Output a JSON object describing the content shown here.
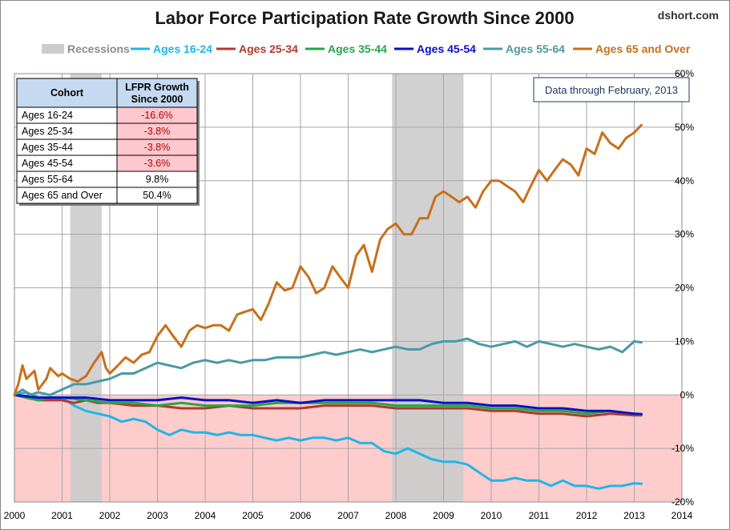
{
  "chart_data": {
    "type": "line",
    "title": "Labor Force Participation Rate Growth Since 2000",
    "credit": "dshort.com",
    "note": "Data through February, 2013",
    "x_ticks": [
      "2000",
      "2001",
      "2002",
      "2003",
      "2004",
      "2005",
      "2006",
      "2007",
      "2008",
      "2009",
      "2010",
      "2011",
      "2012",
      "2013",
      "2014"
    ],
    "xlim": [
      2000,
      2014
    ],
    "y_ticks": [
      "60%",
      "50%",
      "40%",
      "30%",
      "20%",
      "10%",
      "0%",
      "-10%",
      "-20%"
    ],
    "ylim": [
      -20,
      60
    ],
    "grid": true,
    "negative_zone_color": "#ffcccc",
    "recessions": {
      "label": "Recessions",
      "color": "#cccccc",
      "periods": [
        [
          2001.17,
          2001.83
        ],
        [
          2007.92,
          2009.42
        ]
      ]
    },
    "series": [
      {
        "name": "Ages 16-24",
        "color": "#1fb6e8",
        "final": "-16.6%",
        "points": [
          [
            2000,
            0
          ],
          [
            2000.25,
            0.5
          ],
          [
            2000.5,
            -0.5
          ],
          [
            2000.75,
            -1
          ],
          [
            2001,
            -0.5
          ],
          [
            2001.25,
            -2
          ],
          [
            2001.5,
            -3
          ],
          [
            2001.75,
            -3.5
          ],
          [
            2002,
            -4
          ],
          [
            2002.25,
            -5
          ],
          [
            2002.5,
            -4.5
          ],
          [
            2002.75,
            -5
          ],
          [
            2003,
            -6.5
          ],
          [
            2003.25,
            -7.5
          ],
          [
            2003.5,
            -6.5
          ],
          [
            2003.75,
            -7
          ],
          [
            2004,
            -7
          ],
          [
            2004.25,
            -7.5
          ],
          [
            2004.5,
            -7
          ],
          [
            2004.75,
            -7.5
          ],
          [
            2005,
            -7.5
          ],
          [
            2005.25,
            -8
          ],
          [
            2005.5,
            -8.5
          ],
          [
            2005.75,
            -8
          ],
          [
            2006,
            -8.5
          ],
          [
            2006.25,
            -8
          ],
          [
            2006.5,
            -8
          ],
          [
            2006.75,
            -8.5
          ],
          [
            2007,
            -8
          ],
          [
            2007.25,
            -9
          ],
          [
            2007.5,
            -9
          ],
          [
            2007.75,
            -10.5
          ],
          [
            2008,
            -11
          ],
          [
            2008.25,
            -10
          ],
          [
            2008.5,
            -11
          ],
          [
            2008.75,
            -12
          ],
          [
            2009,
            -12.5
          ],
          [
            2009.25,
            -12.5
          ],
          [
            2009.5,
            -13
          ],
          [
            2009.75,
            -14.5
          ],
          [
            2010,
            -16
          ],
          [
            2010.25,
            -16
          ],
          [
            2010.5,
            -15.5
          ],
          [
            2010.75,
            -16
          ],
          [
            2011,
            -16
          ],
          [
            2011.25,
            -17
          ],
          [
            2011.5,
            -16
          ],
          [
            2011.75,
            -17
          ],
          [
            2012,
            -17
          ],
          [
            2012.25,
            -17.5
          ],
          [
            2012.5,
            -17
          ],
          [
            2012.75,
            -17
          ],
          [
            2013,
            -16.5
          ],
          [
            2013.15,
            -16.6
          ]
        ]
      },
      {
        "name": "Ages 25-34",
        "color": "#b03a2e",
        "final": "-3.8%",
        "points": [
          [
            2000,
            0
          ],
          [
            2000.25,
            -0.5
          ],
          [
            2000.5,
            -1
          ],
          [
            2000.75,
            -1
          ],
          [
            2001,
            -1
          ],
          [
            2001.25,
            -1.5
          ],
          [
            2001.5,
            -1
          ],
          [
            2001.75,
            -1.5
          ],
          [
            2002,
            -1.5
          ],
          [
            2002.5,
            -2
          ],
          [
            2003,
            -2
          ],
          [
            2003.5,
            -2.5
          ],
          [
            2004,
            -2.5
          ],
          [
            2004.5,
            -2
          ],
          [
            2005,
            -2.5
          ],
          [
            2005.5,
            -2.5
          ],
          [
            2006,
            -2.5
          ],
          [
            2006.5,
            -2
          ],
          [
            2007,
            -2
          ],
          [
            2007.5,
            -2
          ],
          [
            2008,
            -2.5
          ],
          [
            2008.5,
            -2.5
          ],
          [
            2009,
            -2.5
          ],
          [
            2009.5,
            -2.5
          ],
          [
            2010,
            -3
          ],
          [
            2010.5,
            -3
          ],
          [
            2011,
            -3.5
          ],
          [
            2011.5,
            -3.5
          ],
          [
            2012,
            -4
          ],
          [
            2012.5,
            -3.5
          ],
          [
            2013,
            -3.8
          ],
          [
            2013.15,
            -3.8
          ]
        ]
      },
      {
        "name": "Ages 35-44",
        "color": "#23a746",
        "final": "-3.8%",
        "points": [
          [
            2000,
            0
          ],
          [
            2000.25,
            -0.5
          ],
          [
            2000.5,
            -1
          ],
          [
            2000.75,
            -0.5
          ],
          [
            2001,
            -0.5
          ],
          [
            2001.5,
            -1
          ],
          [
            2002,
            -1.5
          ],
          [
            2002.5,
            -1.5
          ],
          [
            2003,
            -2
          ],
          [
            2003.5,
            -1.5
          ],
          [
            2004,
            -2
          ],
          [
            2004.5,
            -2
          ],
          [
            2005,
            -2
          ],
          [
            2005.5,
            -1.5
          ],
          [
            2006,
            -1.5
          ],
          [
            2006.5,
            -1.5
          ],
          [
            2007,
            -1.5
          ],
          [
            2007.5,
            -1.5
          ],
          [
            2008,
            -2
          ],
          [
            2008.5,
            -2
          ],
          [
            2009,
            -2
          ],
          [
            2009.5,
            -2
          ],
          [
            2010,
            -2.5
          ],
          [
            2010.5,
            -2.5
          ],
          [
            2011,
            -3
          ],
          [
            2011.5,
            -3
          ],
          [
            2012,
            -3.5
          ],
          [
            2012.5,
            -3
          ],
          [
            2013,
            -3.5
          ],
          [
            2013.15,
            -3.8
          ]
        ]
      },
      {
        "name": "Ages 45-54",
        "color": "#0a10c8",
        "final": "-3.6%",
        "points": [
          [
            2000,
            0
          ],
          [
            2000.5,
            -0.5
          ],
          [
            2001,
            -0.5
          ],
          [
            2001.5,
            -0.5
          ],
          [
            2002,
            -1
          ],
          [
            2002.5,
            -1
          ],
          [
            2003,
            -1
          ],
          [
            2003.5,
            -0.5
          ],
          [
            2004,
            -1
          ],
          [
            2004.5,
            -1
          ],
          [
            2005,
            -1.5
          ],
          [
            2005.5,
            -1
          ],
          [
            2006,
            -1.5
          ],
          [
            2006.5,
            -1
          ],
          [
            2007,
            -1
          ],
          [
            2007.5,
            -1
          ],
          [
            2008,
            -1
          ],
          [
            2008.5,
            -1
          ],
          [
            2009,
            -1.5
          ],
          [
            2009.5,
            -1.5
          ],
          [
            2010,
            -2
          ],
          [
            2010.5,
            -2
          ],
          [
            2011,
            -2.5
          ],
          [
            2011.5,
            -2.5
          ],
          [
            2012,
            -3
          ],
          [
            2012.5,
            -3
          ],
          [
            2013,
            -3.5
          ],
          [
            2013.15,
            -3.6
          ]
        ]
      },
      {
        "name": "Ages 55-64",
        "color": "#4a9aa5",
        "final": "9.8%",
        "points": [
          [
            2000,
            0
          ],
          [
            2000.17,
            1
          ],
          [
            2000.33,
            0
          ],
          [
            2000.5,
            0.5
          ],
          [
            2000.75,
            0
          ],
          [
            2001,
            1
          ],
          [
            2001.25,
            2
          ],
          [
            2001.5,
            2
          ],
          [
            2001.75,
            2.5
          ],
          [
            2002,
            3
          ],
          [
            2002.25,
            4
          ],
          [
            2002.5,
            4
          ],
          [
            2002.75,
            5
          ],
          [
            2003,
            6
          ],
          [
            2003.25,
            5.5
          ],
          [
            2003.5,
            5
          ],
          [
            2003.75,
            6
          ],
          [
            2004,
            6.5
          ],
          [
            2004.25,
            6
          ],
          [
            2004.5,
            6.5
          ],
          [
            2004.75,
            6
          ],
          [
            2005,
            6.5
          ],
          [
            2005.25,
            6.5
          ],
          [
            2005.5,
            7
          ],
          [
            2005.75,
            7
          ],
          [
            2006,
            7
          ],
          [
            2006.25,
            7.5
          ],
          [
            2006.5,
            8
          ],
          [
            2006.75,
            7.5
          ],
          [
            2007,
            8
          ],
          [
            2007.25,
            8.5
          ],
          [
            2007.5,
            8
          ],
          [
            2007.75,
            8.5
          ],
          [
            2008,
            9
          ],
          [
            2008.25,
            8.5
          ],
          [
            2008.5,
            8.5
          ],
          [
            2008.75,
            9.5
          ],
          [
            2009,
            10
          ],
          [
            2009.25,
            10
          ],
          [
            2009.5,
            10.5
          ],
          [
            2009.75,
            9.5
          ],
          [
            2010,
            9
          ],
          [
            2010.25,
            9.5
          ],
          [
            2010.5,
            10
          ],
          [
            2010.75,
            9
          ],
          [
            2011,
            10
          ],
          [
            2011.25,
            9.5
          ],
          [
            2011.5,
            9
          ],
          [
            2011.75,
            9.5
          ],
          [
            2012,
            9
          ],
          [
            2012.25,
            8.5
          ],
          [
            2012.5,
            9
          ],
          [
            2012.75,
            8
          ],
          [
            2013,
            10
          ],
          [
            2013.15,
            9.8
          ]
        ]
      },
      {
        "name": "Ages 65 and Over",
        "color": "#c8701a",
        "final": "50.4%",
        "points": [
          [
            2000,
            0
          ],
          [
            2000.08,
            2
          ],
          [
            2000.17,
            5.5
          ],
          [
            2000.25,
            3
          ],
          [
            2000.42,
            4.5
          ],
          [
            2000.5,
            1
          ],
          [
            2000.67,
            3
          ],
          [
            2000.75,
            5
          ],
          [
            2000.92,
            3.5
          ],
          [
            2001,
            4
          ],
          [
            2001.17,
            3
          ],
          [
            2001.33,
            2.5
          ],
          [
            2001.5,
            3.5
          ],
          [
            2001.67,
            6
          ],
          [
            2001.83,
            8
          ],
          [
            2001.92,
            5
          ],
          [
            2002,
            4
          ],
          [
            2002.17,
            5.5
          ],
          [
            2002.33,
            7
          ],
          [
            2002.5,
            6
          ],
          [
            2002.67,
            7.5
          ],
          [
            2002.83,
            8
          ],
          [
            2003,
            11
          ],
          [
            2003.17,
            13
          ],
          [
            2003.33,
            11
          ],
          [
            2003.5,
            9
          ],
          [
            2003.67,
            12
          ],
          [
            2003.83,
            13
          ],
          [
            2004,
            12.5
          ],
          [
            2004.17,
            13
          ],
          [
            2004.33,
            13
          ],
          [
            2004.5,
            12
          ],
          [
            2004.67,
            15
          ],
          [
            2004.83,
            15.5
          ],
          [
            2005,
            16
          ],
          [
            2005.17,
            14
          ],
          [
            2005.33,
            17
          ],
          [
            2005.5,
            21
          ],
          [
            2005.67,
            19.5
          ],
          [
            2005.83,
            20
          ],
          [
            2006,
            24
          ],
          [
            2006.17,
            22
          ],
          [
            2006.33,
            19
          ],
          [
            2006.5,
            20
          ],
          [
            2006.67,
            24
          ],
          [
            2006.83,
            22
          ],
          [
            2007,
            20
          ],
          [
            2007.17,
            26
          ],
          [
            2007.33,
            28
          ],
          [
            2007.5,
            23
          ],
          [
            2007.67,
            29
          ],
          [
            2007.83,
            31
          ],
          [
            2008,
            32
          ],
          [
            2008.17,
            30
          ],
          [
            2008.33,
            30
          ],
          [
            2008.5,
            33
          ],
          [
            2008.67,
            33
          ],
          [
            2008.83,
            37
          ],
          [
            2009,
            38
          ],
          [
            2009.17,
            37
          ],
          [
            2009.33,
            36
          ],
          [
            2009.5,
            37
          ],
          [
            2009.67,
            35
          ],
          [
            2009.83,
            38
          ],
          [
            2010,
            40
          ],
          [
            2010.17,
            40
          ],
          [
            2010.33,
            39
          ],
          [
            2010.5,
            38
          ],
          [
            2010.67,
            36
          ],
          [
            2010.83,
            39
          ],
          [
            2011,
            42
          ],
          [
            2011.17,
            40
          ],
          [
            2011.33,
            42
          ],
          [
            2011.5,
            44
          ],
          [
            2011.67,
            43
          ],
          [
            2011.83,
            41
          ],
          [
            2012,
            46
          ],
          [
            2012.17,
            45
          ],
          [
            2012.33,
            49
          ],
          [
            2012.5,
            47
          ],
          [
            2012.67,
            46
          ],
          [
            2012.83,
            48
          ],
          [
            2013,
            49
          ],
          [
            2013.15,
            50.4
          ]
        ]
      }
    ],
    "table": {
      "headers": [
        "Cohort",
        "LFPR Growth Since 2000"
      ],
      "rows": [
        {
          "cohort": "Ages 16-24",
          "value": "-16.6%",
          "negative": true
        },
        {
          "cohort": "Ages 25-34",
          "value": "-3.8%",
          "negative": true
        },
        {
          "cohort": "Ages 35-44",
          "value": "-3.8%",
          "negative": true
        },
        {
          "cohort": "Ages 45-54",
          "value": "-3.6%",
          "negative": true
        },
        {
          "cohort": "Ages 55-64",
          "value": "9.8%",
          "negative": false
        },
        {
          "cohort": "Ages 65 and Over",
          "value": "50.4%",
          "negative": false
        }
      ]
    }
  }
}
